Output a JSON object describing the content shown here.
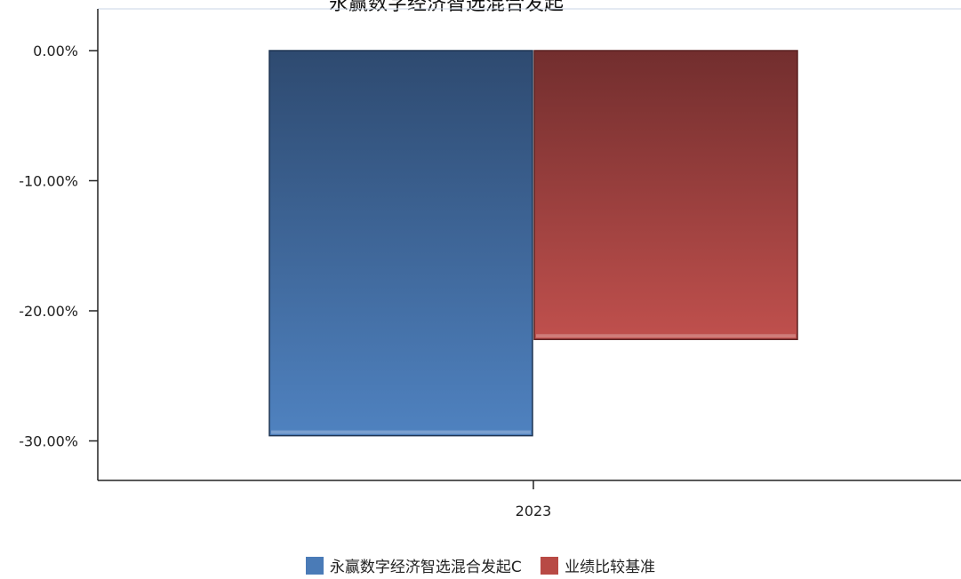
{
  "chart_data": {
    "type": "bar",
    "title": "永赢数字经济智选混合发起",
    "categories": [
      "2023"
    ],
    "series": [
      {
        "name": "永赢数字经济智选混合发起C",
        "values": [
          -29.6
        ],
        "color": "#4a7bb7"
      },
      {
        "name": "业绩比较基准",
        "values": [
          -22.2
        ],
        "color": "#b84a45"
      }
    ],
    "ylim": [
      -33,
      3
    ],
    "yticks": [
      "0.00%",
      "-10.00%",
      "-20.00%",
      "-30.00%"
    ],
    "ytick_values": [
      0,
      -10,
      -20,
      -30
    ],
    "xlabel": "",
    "ylabel": "",
    "grid": false,
    "legend_position": "bottom"
  }
}
